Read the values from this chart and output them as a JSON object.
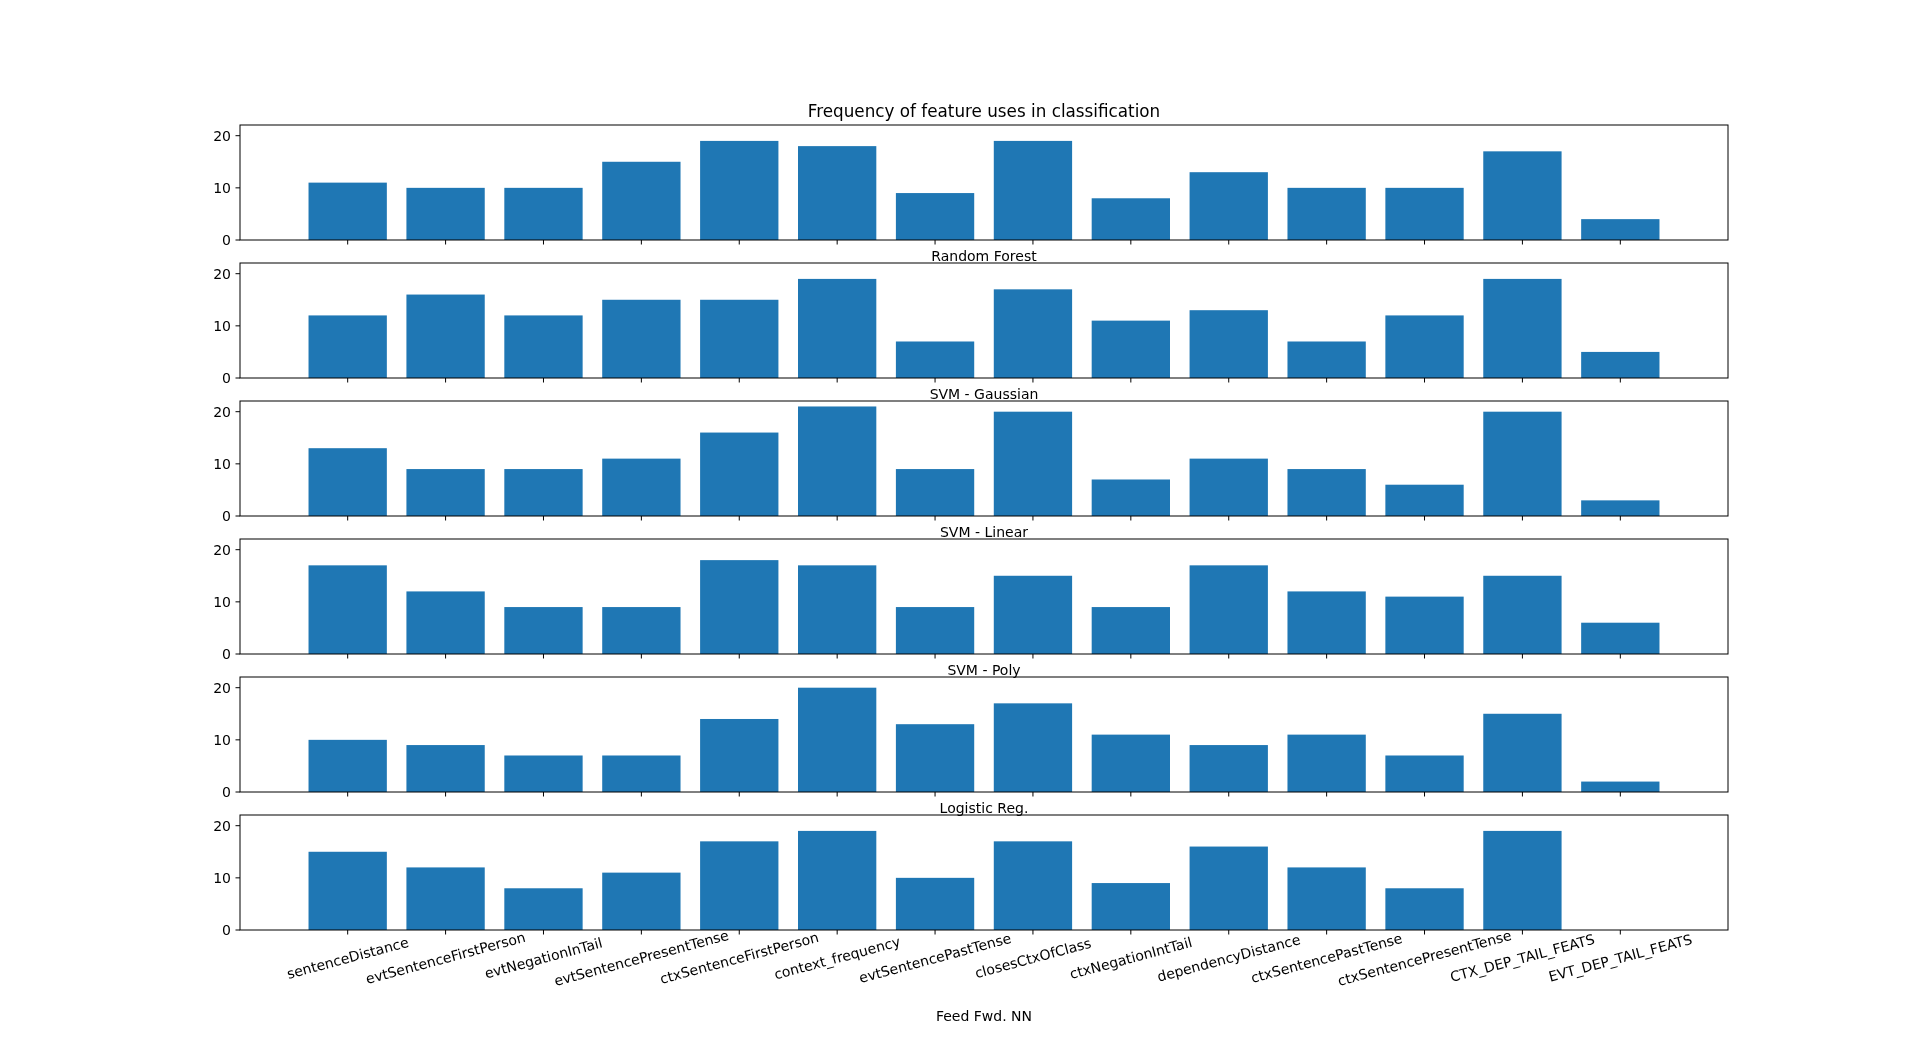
{
  "chart_data": [
    {
      "type": "bar",
      "title": "Frequency of feature uses in classification",
      "xlabel": "Random Forest",
      "categories": [
        null,
        null,
        null,
        null,
        null,
        null,
        null,
        null,
        null,
        null,
        null,
        null,
        null,
        null
      ],
      "values": [
        11,
        10,
        10,
        15,
        19,
        18,
        9,
        19,
        8,
        13,
        10,
        10,
        17,
        4
      ],
      "color": "#1f77b4",
      "ylim": [
        0,
        22.05
      ],
      "yticks": [
        0,
        10,
        20
      ]
    },
    {
      "type": "bar",
      "xlabel": "SVM - Gaussian",
      "categories": [
        null,
        null,
        null,
        null,
        null,
        null,
        null,
        null,
        null,
        null,
        null,
        null,
        null,
        null
      ],
      "values": [
        12,
        16,
        12,
        15,
        15,
        19,
        7,
        17,
        11,
        13,
        7,
        12,
        19,
        5
      ],
      "color": "#1f77b4",
      "ylim": [
        0,
        22.05
      ],
      "yticks": [
        0,
        10,
        20
      ]
    },
    {
      "type": "bar",
      "xlabel": "SVM - Linear",
      "categories": [
        null,
        null,
        null,
        null,
        null,
        null,
        null,
        null,
        null,
        null,
        null,
        null,
        null,
        null
      ],
      "values": [
        13,
        9,
        9,
        11,
        16,
        21,
        9,
        20,
        7,
        11,
        9,
        6,
        20,
        3
      ],
      "color": "#1f77b4",
      "ylim": [
        0,
        22.05
      ],
      "yticks": [
        0,
        10,
        20
      ]
    },
    {
      "type": "bar",
      "xlabel": "SVM - Poly",
      "categories": [
        null,
        null,
        null,
        null,
        null,
        null,
        null,
        null,
        null,
        null,
        null,
        null,
        null,
        null
      ],
      "values": [
        17,
        12,
        9,
        9,
        18,
        17,
        9,
        15,
        9,
        17,
        12,
        11,
        15,
        6
      ],
      "color": "#1f77b4",
      "ylim": [
        0,
        22.05
      ],
      "yticks": [
        0,
        10,
        20
      ]
    },
    {
      "type": "bar",
      "xlabel": "Logistic Reg.",
      "categories": [
        null,
        null,
        null,
        null,
        null,
        null,
        null,
        null,
        null,
        null,
        null,
        null,
        null,
        null
      ],
      "values": [
        10,
        9,
        7,
        7,
        14,
        20,
        13,
        17,
        11,
        9,
        11,
        7,
        15,
        2
      ],
      "color": "#1f77b4",
      "ylim": [
        0,
        22.05
      ],
      "yticks": [
        0,
        10,
        20
      ]
    },
    {
      "type": "bar",
      "xlabel": "Feed Fwd. NN",
      "categories": [
        "sentenceDistance",
        "evtSentenceFirstPerson",
        "evtNegationInTail",
        "evtSentencePresentTense",
        "ctxSentenceFirstPerson",
        "context_frequency",
        "evtSentencePastTense",
        "closesCtxOfClass",
        "ctxNegationIntTail",
        "dependencyDistance",
        "ctxSentencePastTense",
        "ctxSentencePresentTense",
        "CTX_DEP_TAIL_FEATS",
        "EVT_DEP_TAIL_FEATS"
      ],
      "values": [
        15,
        12,
        8,
        11,
        17,
        19,
        10,
        17,
        9,
        16,
        12,
        8,
        19,
        0
      ],
      "color": "#1f77b4",
      "ylim": [
        0,
        22.05
      ],
      "yticks": [
        0,
        10,
        20
      ]
    }
  ]
}
